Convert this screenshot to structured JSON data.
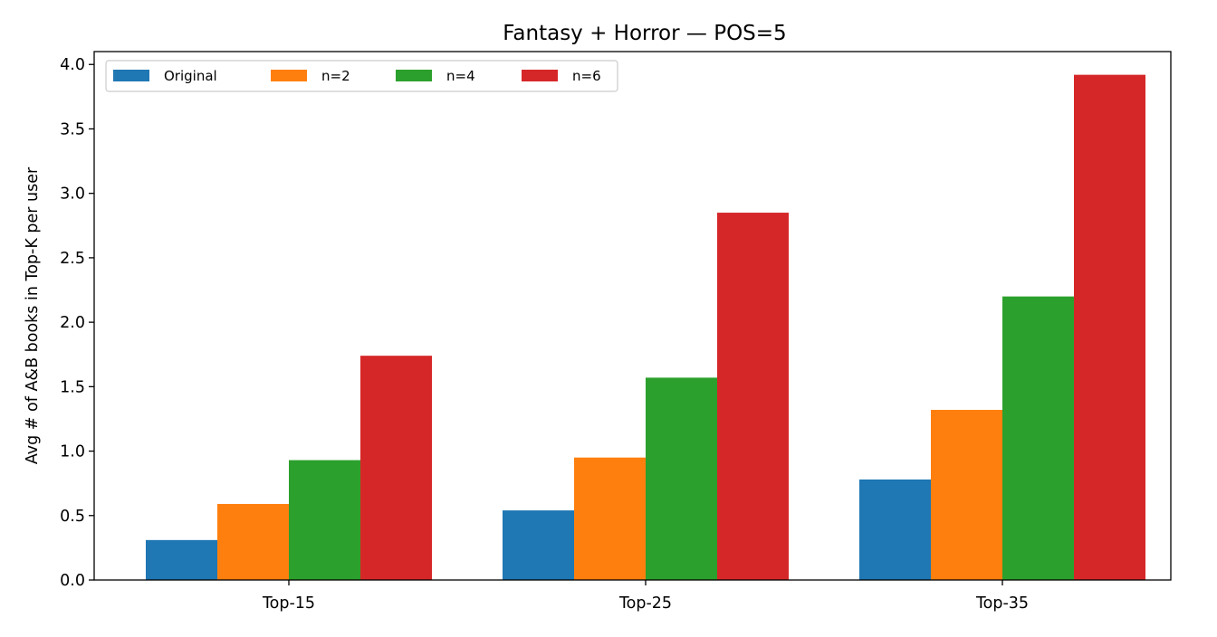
{
  "chart_data": {
    "type": "bar",
    "title": "Fantasy + Horror — POS=5",
    "xlabel": "",
    "ylabel": "Avg # of A&B books in Top-K per user",
    "categories": [
      "Top-15",
      "Top-25",
      "Top-35"
    ],
    "ylim": [
      0,
      4.1
    ],
    "yticks": [
      "0.0",
      "0.5",
      "1.0",
      "1.5",
      "2.0",
      "2.5",
      "3.0",
      "3.5",
      "4.0"
    ],
    "grid": false,
    "legend_position": "top-left",
    "series": [
      {
        "name": "Original",
        "color": "#1f77b4",
        "values": [
          0.31,
          0.54,
          0.78
        ]
      },
      {
        "name": "n=2",
        "color": "#ff7f0e",
        "values": [
          0.59,
          0.95,
          1.32
        ]
      },
      {
        "name": "n=4",
        "color": "#2ca02c",
        "values": [
          0.93,
          1.57,
          2.2
        ]
      },
      {
        "name": "n=6",
        "color": "#d62728",
        "values": [
          1.74,
          2.85,
          3.92
        ]
      }
    ]
  }
}
